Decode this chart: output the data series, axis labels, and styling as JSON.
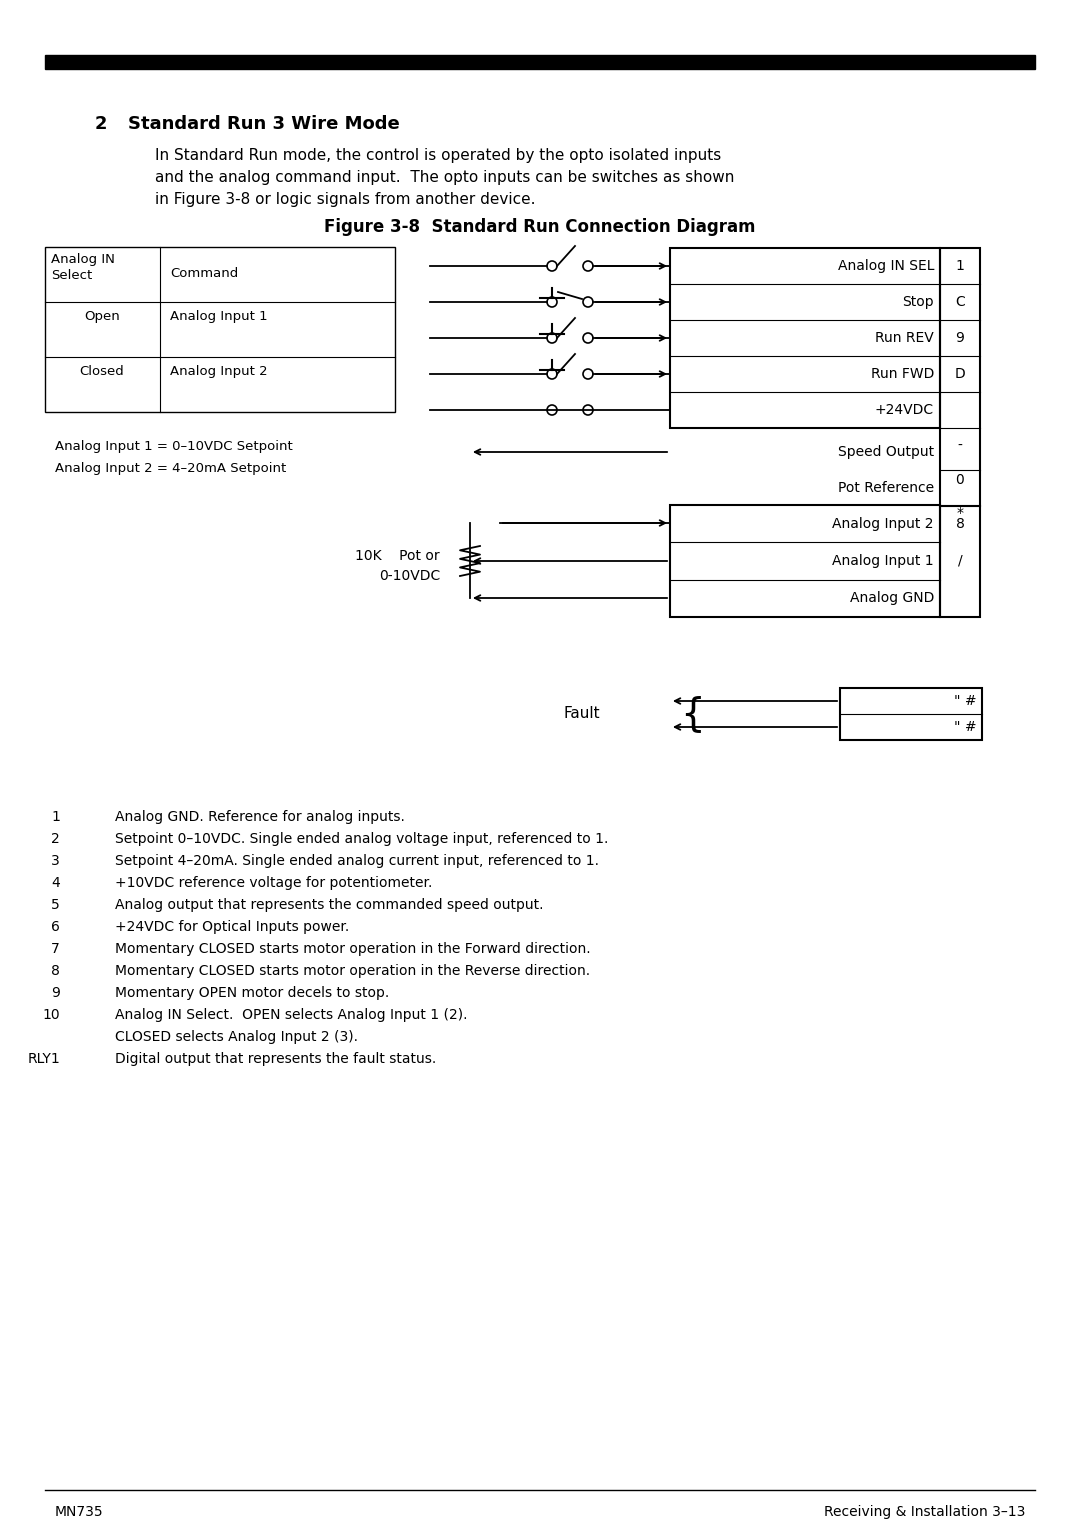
{
  "title_number": "2",
  "title_text": "Standard Run 3 Wire Mode",
  "body_text_line1": "In Standard Run mode, the control is operated by the opto isolated inputs",
  "body_text_line2": "and the analog command input.  The opto inputs can be switches as shown",
  "body_text_line3": "in Figure 3-8 or logic signals from another device.",
  "figure_title": "Figure 3-8  Standard Run Connection Diagram",
  "analog_note1": "Analog Input 1 = 0–10VDC Setpoint",
  "analog_note2": "Analog Input 2 = 4–20mA Setpoint",
  "pot_label_line1": "10K    Pot or",
  "pot_label_line2": "0-10VDC",
  "fault_label": "Fault",
  "fault_box_labels": [
    "\" #",
    "\" #"
  ],
  "footnotes": [
    [
      "1",
      "Analog GND. Reference for analog inputs."
    ],
    [
      "2",
      "Setpoint 0–10VDC. Single ended analog voltage input, referenced to 1."
    ],
    [
      "3",
      "Setpoint 4–20mA. Single ended analog current input, referenced to 1."
    ],
    [
      "4",
      "+10VDC reference voltage for potentiometer."
    ],
    [
      "5",
      "Analog output that represents the commanded speed output."
    ],
    [
      "6",
      "+24VDC for Optical Inputs power."
    ],
    [
      "7",
      "Momentary CLOSED starts motor operation in the Forward direction."
    ],
    [
      "8",
      "Momentary CLOSED starts motor operation in the Reverse direction."
    ],
    [
      "9",
      "Momentary OPEN motor decels to stop."
    ],
    [
      "10",
      "Analog IN Select.  OPEN selects Analog Input 1 (2)."
    ],
    [
      "",
      "CLOSED selects Analog Input 2 (3)."
    ],
    [
      "RLY1",
      "Digital output that represents the fault status."
    ]
  ],
  "footer_left": "MN735",
  "footer_right": "Receiving & Installation 3–13"
}
